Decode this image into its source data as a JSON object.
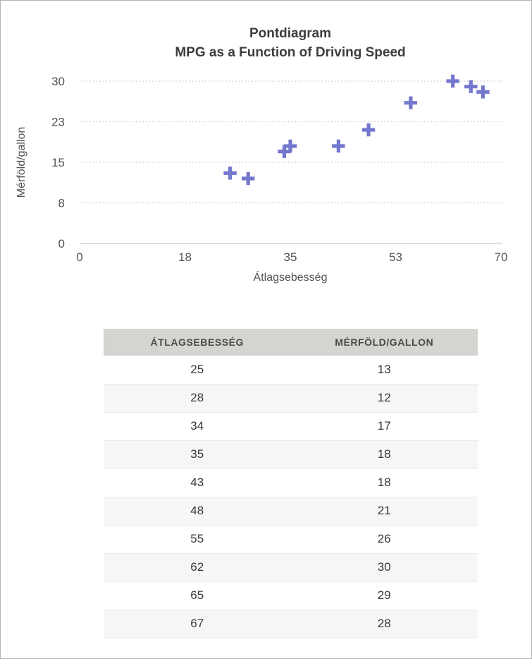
{
  "chart_data": {
    "type": "scatter",
    "title": "Pontdiagram",
    "subtitle": "MPG as a Function of Driving Speed",
    "xlabel": "Átlagsebesség",
    "ylabel": "Mérföld/gallon",
    "x": [
      25,
      28,
      34,
      35,
      43,
      48,
      55,
      62,
      65,
      67
    ],
    "y": [
      13,
      12,
      17,
      18,
      18,
      21,
      26,
      30,
      29,
      28
    ],
    "xlim": [
      0,
      70
    ],
    "ylim": [
      0,
      30
    ],
    "x_ticks": [
      {
        "label": "0",
        "value": 0
      },
      {
        "label": "18",
        "value": 17.5
      },
      {
        "label": "35",
        "value": 35
      },
      {
        "label": "53",
        "value": 52.5
      },
      {
        "label": "70",
        "value": 70
      }
    ],
    "y_ticks": [
      {
        "label": "0",
        "value": 0
      },
      {
        "label": "8",
        "value": 7.5
      },
      {
        "label": "15",
        "value": 15
      },
      {
        "label": "23",
        "value": 22.5
      },
      {
        "label": "30",
        "value": 30
      }
    ],
    "grid": "horizontal-dotted",
    "legend": "none",
    "marker": "plus",
    "marker_color": "#7477cd"
  },
  "table": {
    "columns": [
      "ÁTLAGSEBESSÉG",
      "MÉRFÖLD/GALLON"
    ],
    "rows": [
      [
        "25",
        "13"
      ],
      [
        "28",
        "12"
      ],
      [
        "34",
        "17"
      ],
      [
        "35",
        "18"
      ],
      [
        "43",
        "18"
      ],
      [
        "48",
        "21"
      ],
      [
        "55",
        "26"
      ],
      [
        "62",
        "30"
      ],
      [
        "65",
        "29"
      ],
      [
        "67",
        "28"
      ]
    ]
  },
  "colors": {
    "marker": "#7477cd",
    "gridline": "#c8c8c8",
    "axis_line": "#c9c9c9",
    "tick_text": "#545454",
    "title_text": "#3d3d3d",
    "header_bg": "#d6d4d1",
    "row_alt_bg": "#f6f6f5",
    "frame_border": "#b3b3b3"
  }
}
